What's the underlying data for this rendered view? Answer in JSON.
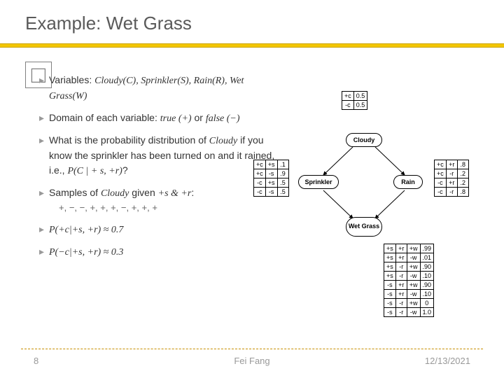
{
  "title": "Example: Wet Grass",
  "box_glyph": "□",
  "bullets": {
    "b1_pre": "Variables: ",
    "b1_math": "Cloudy(C), Sprinkler(S), Rain(R), Wet Grass(W)",
    "b2_pre": "Domain of each variable: ",
    "b2_math1": "true (+)",
    "b2_mid": " or ",
    "b2_math2": "false (−)",
    "b3_pre": "What is the probability distribution of ",
    "b3_m1": "Cloudy",
    "b3_mid1": " if you know the sprinkler has been turned on and it rained, i.e., ",
    "b3_m2": "P(C | + s, +r)",
    "b3_end": "?",
    "b4_pre": "Samples of ",
    "b4_m1": "Cloudy",
    "b4_mid": " given ",
    "b4_m2": "+s & +r",
    "b4_end": ":",
    "b4_samples": "+, −, −, +, +, +, −, +, +, +",
    "b5": "P(+c|+s, +r) ≈ 0.7",
    "b6": "P(−c|+s, +r) ≈ 0.3"
  },
  "cpt_c": {
    "rows": [
      [
        "+c",
        "0.5"
      ],
      [
        "-c",
        "0.5"
      ]
    ]
  },
  "cpt_s": {
    "rows": [
      [
        "+c",
        "+s",
        ".1"
      ],
      [
        "+c",
        "-s",
        ".9"
      ],
      [
        "-c",
        "+s",
        ".5"
      ],
      [
        "-c",
        "-s",
        ".5"
      ]
    ]
  },
  "cpt_r": {
    "rows": [
      [
        "+c",
        "+r",
        ".8"
      ],
      [
        "+c",
        "-r",
        ".2"
      ],
      [
        "-c",
        "+r",
        ".2"
      ],
      [
        "-c",
        "-r",
        ".8"
      ]
    ]
  },
  "cpt_w": {
    "rows": [
      [
        "+s",
        "+r",
        "+w",
        ".99"
      ],
      [
        "+s",
        "+r",
        "-w",
        ".01"
      ],
      [
        "+s",
        "-r",
        "+w",
        ".90"
      ],
      [
        "+s",
        "-r",
        "-w",
        ".10"
      ],
      [
        "-s",
        "+r",
        "+w",
        ".90"
      ],
      [
        "-s",
        "+r",
        "-w",
        ".10"
      ],
      [
        "-s",
        "-r",
        "+w",
        "0"
      ],
      [
        "-s",
        "-r",
        "-w",
        "1.0"
      ]
    ]
  },
  "nodes": {
    "cloudy": "Cloudy",
    "sprinkler": "Sprinkler",
    "rain": "Rain",
    "wetgrass": "Wet Grass"
  },
  "footer": {
    "page": "8",
    "author": "Fei Fang",
    "date": "12/13/2021"
  },
  "colors": {
    "rule": "#f3c700",
    "title": "#5a5a5a"
  }
}
